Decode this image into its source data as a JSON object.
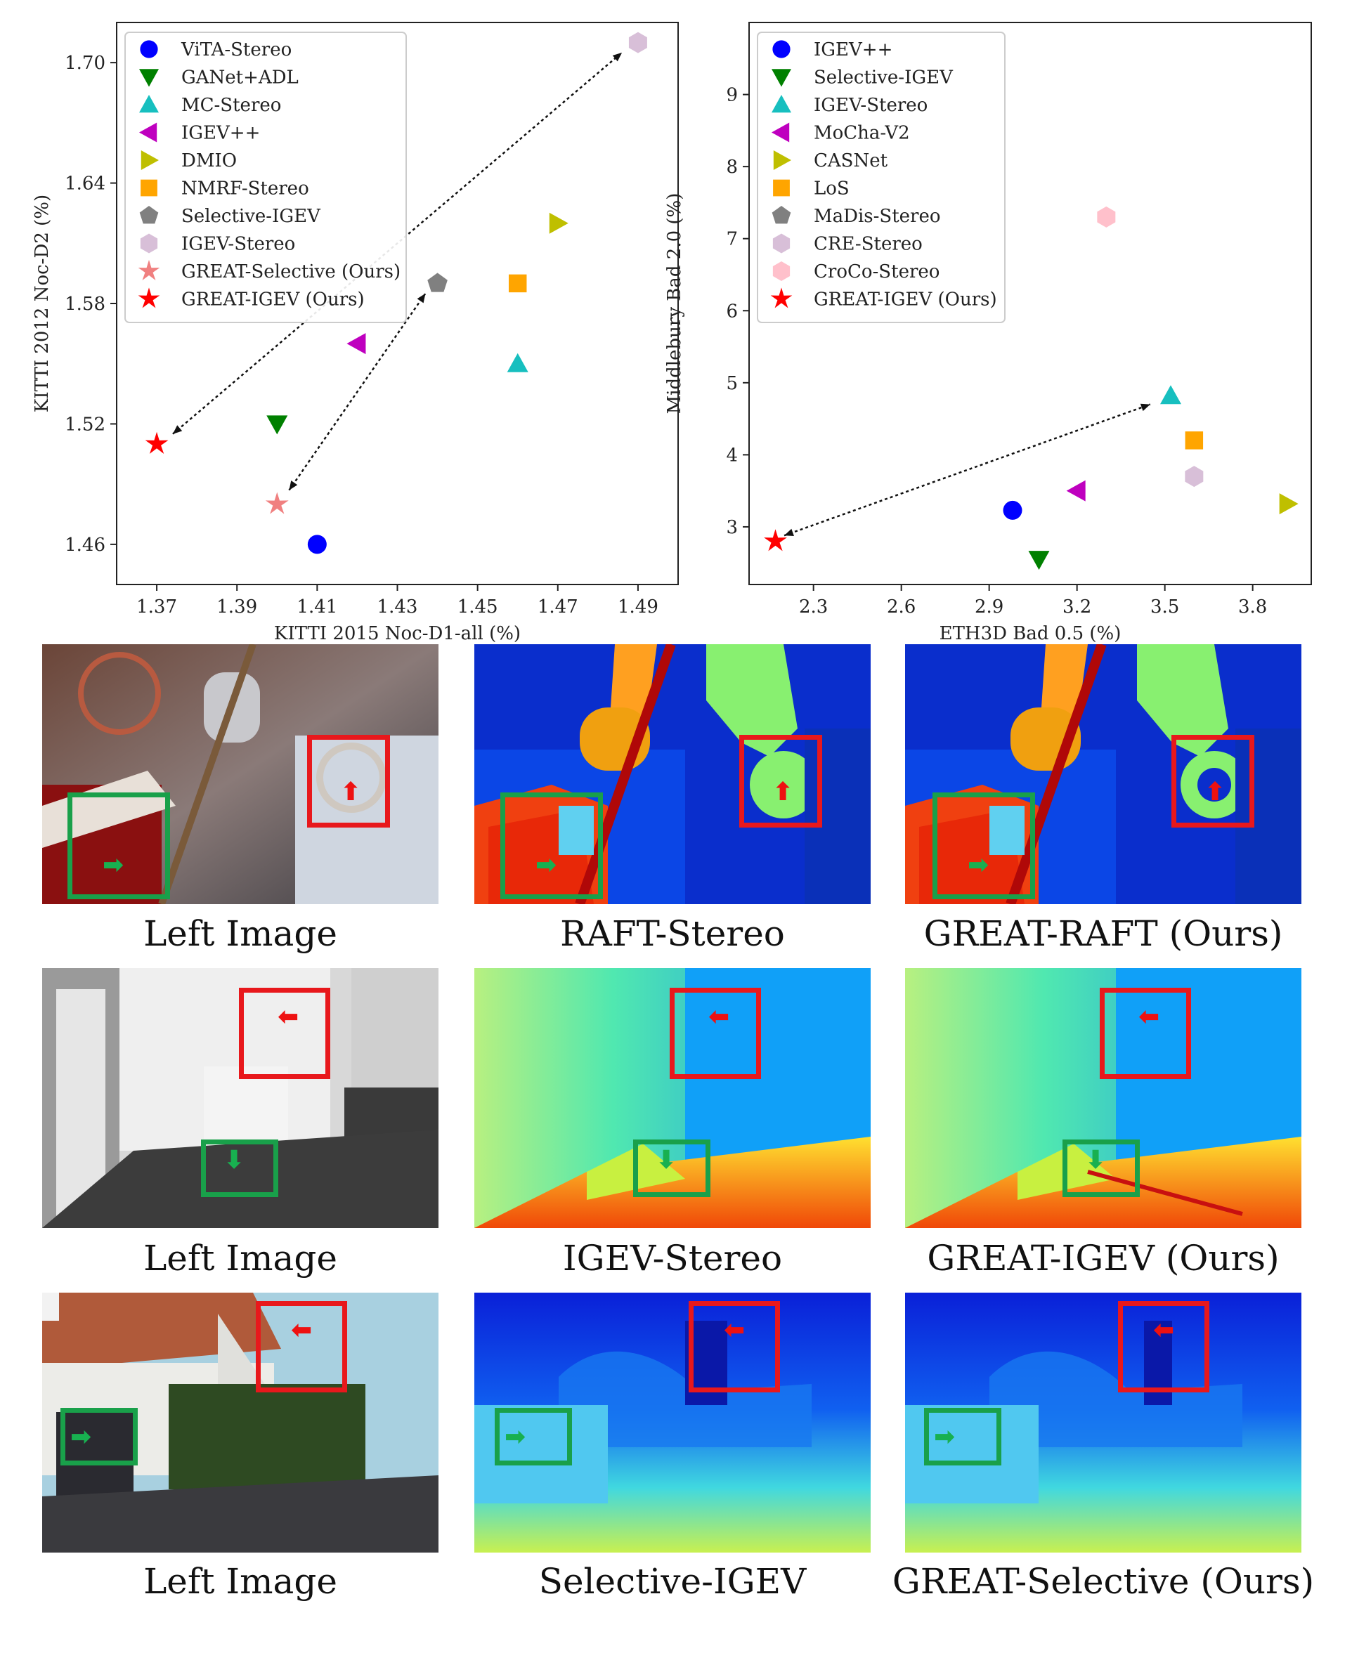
{
  "chart_data": [
    {
      "type": "scatter",
      "xlabel": "KITTI 2015 Noc-D1-all (%)",
      "ylabel": "KITTI 2012 Noc-D2 (%)",
      "xlim": [
        1.36,
        1.5
      ],
      "ylim": [
        1.44,
        1.72
      ],
      "xticks": [
        "1.37",
        "1.39",
        "1.41",
        "1.43",
        "1.45",
        "1.47",
        "1.49"
      ],
      "yticks": [
        "1.46",
        "1.52",
        "1.58",
        "1.64",
        "1.70"
      ],
      "grid": false,
      "legend_position": "top-left",
      "series": [
        {
          "name": "ViTA-Stereo",
          "marker": "circle",
          "color": "#0000ff",
          "x": 1.41,
          "y": 1.46
        },
        {
          "name": "GANet+ADL",
          "marker": "triangle-down",
          "color": "#008000",
          "x": 1.4,
          "y": 1.52
        },
        {
          "name": "MC-Stereo",
          "marker": "triangle-up",
          "color": "#17bfbf",
          "x": 1.46,
          "y": 1.55
        },
        {
          "name": "IGEV++",
          "marker": "triangle-left",
          "color": "#bf00bf",
          "x": 1.42,
          "y": 1.56
        },
        {
          "name": "DMIO",
          "marker": "triangle-right",
          "color": "#bfbf00",
          "x": 1.47,
          "y": 1.62
        },
        {
          "name": "NMRF-Stereo",
          "marker": "square",
          "color": "#ffa500",
          "x": 1.46,
          "y": 1.59
        },
        {
          "name": "Selective-IGEV",
          "marker": "pentagon",
          "color": "#808080",
          "x": 1.44,
          "y": 1.59
        },
        {
          "name": "IGEV-Stereo",
          "marker": "hexagon",
          "color": "#d8bfd8",
          "x": 1.49,
          "y": 1.71
        },
        {
          "name": "GREAT-Selective (Ours)",
          "marker": "star",
          "color": "#f08080",
          "x": 1.4,
          "y": 1.48
        },
        {
          "name": "GREAT-IGEV (Ours)",
          "marker": "star",
          "color": "#ff0000",
          "x": 1.37,
          "y": 1.51
        }
      ],
      "annotations": [
        {
          "type": "double-arrow",
          "from": [
            1.374,
            1.515
          ],
          "to": [
            1.486,
            1.705
          ]
        },
        {
          "type": "double-arrow",
          "from": [
            1.403,
            1.487
          ],
          "to": [
            1.437,
            1.585
          ]
        }
      ]
    },
    {
      "type": "scatter",
      "xlabel": "ETH3D Bad 0.5 (%)",
      "ylabel": "Middlebury Bad 2.0 (%)",
      "xlim": [
        2.08,
        4.0
      ],
      "ylim": [
        2.2,
        10.0
      ],
      "xticks": [
        "2.3",
        "2.6",
        "2.9",
        "3.2",
        "3.5",
        "3.8"
      ],
      "yticks": [
        "3",
        "4",
        "5",
        "6",
        "7",
        "8",
        "9"
      ],
      "grid": false,
      "legend_position": "top-left",
      "series": [
        {
          "name": "IGEV++",
          "marker": "circle",
          "color": "#0000ff",
          "x": 2.98,
          "y": 3.23
        },
        {
          "name": "Selective-IGEV",
          "marker": "triangle-down",
          "color": "#008000",
          "x": 3.07,
          "y": 2.55
        },
        {
          "name": "IGEV-Stereo",
          "marker": "triangle-up",
          "color": "#17bfbf",
          "x": 3.52,
          "y": 4.82
        },
        {
          "name": "MoCha-V2",
          "marker": "triangle-left",
          "color": "#bf00bf",
          "x": 3.2,
          "y": 3.5
        },
        {
          "name": "CASNet",
          "marker": "triangle-right",
          "color": "#bfbf00",
          "x": 3.92,
          "y": 3.32
        },
        {
          "name": "LoS",
          "marker": "square",
          "color": "#ffa500",
          "x": 3.6,
          "y": 4.2
        },
        {
          "name": "MaDis-Stereo",
          "marker": "pentagon",
          "color": "#808080",
          "x": null,
          "y": null
        },
        {
          "name": "CRE-Stereo",
          "marker": "hexagon",
          "color": "#d8bfd8",
          "x": 3.6,
          "y": 3.7
        },
        {
          "name": "CroCo-Stereo",
          "marker": "hexagon",
          "color": "#ffc0cb",
          "x": 3.3,
          "y": 7.3
        },
        {
          "name": "GREAT-IGEV (Ours)",
          "marker": "star",
          "color": "#ff0000",
          "x": 2.17,
          "y": 2.8
        }
      ],
      "annotations": [
        {
          "type": "double-arrow",
          "from": [
            2.2,
            2.88
          ],
          "to": [
            3.45,
            4.7
          ]
        }
      ]
    }
  ],
  "qualitative": {
    "rows": [
      {
        "captions": [
          "Left Image",
          "RAFT-Stereo",
          "GREAT-RAFT (Ours)"
        ]
      },
      {
        "captions": [
          "Left Image",
          "IGEV-Stereo",
          "GREAT-IGEV (Ours)"
        ]
      },
      {
        "captions": [
          "Left Image",
          "Selective-IGEV",
          "GREAT-Selective (Ours)"
        ]
      }
    ]
  }
}
